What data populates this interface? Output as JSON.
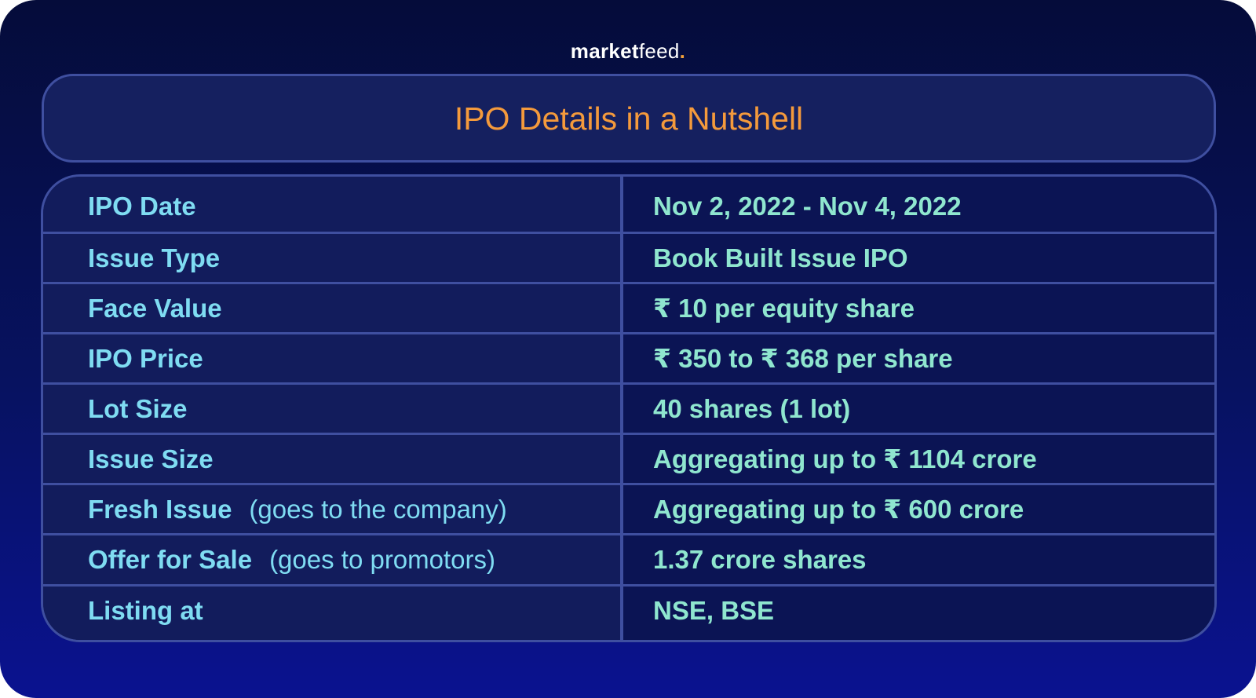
{
  "brand": {
    "part1": "market",
    "part2": "feed",
    "dot": "."
  },
  "title": "IPO Details in a Nutshell",
  "colors": {
    "title": "#f49a3c",
    "label": "#7fdcf2",
    "value": "#8fe6cf",
    "border": "#3f4fa0",
    "background": "#071260"
  },
  "rows": [
    {
      "label": "IPO Date",
      "note": "",
      "value": "Nov 2, 2022 - Nov 4, 2022"
    },
    {
      "label": "Issue Type",
      "note": "",
      "value": "Book Built Issue IPO"
    },
    {
      "label": "Face Value",
      "note": "",
      "value": "₹ 10 per equity share"
    },
    {
      "label": "IPO Price",
      "note": "",
      "value": "₹ 350 to ₹ 368 per share"
    },
    {
      "label": "Lot Size",
      "note": "",
      "value": "40 shares (1 lot)"
    },
    {
      "label": "Issue Size",
      "note": "",
      "value": "Aggregating up to ₹ 1104 crore"
    },
    {
      "label": "Fresh Issue",
      "note": "(goes to the company)",
      "value": "Aggregating up to ₹ 600 crore"
    },
    {
      "label": "Offer for Sale",
      "note": "(goes to promotors)",
      "value": "1.37 crore shares"
    },
    {
      "label": "Listing at",
      "note": "",
      "value": "NSE, BSE"
    }
  ]
}
